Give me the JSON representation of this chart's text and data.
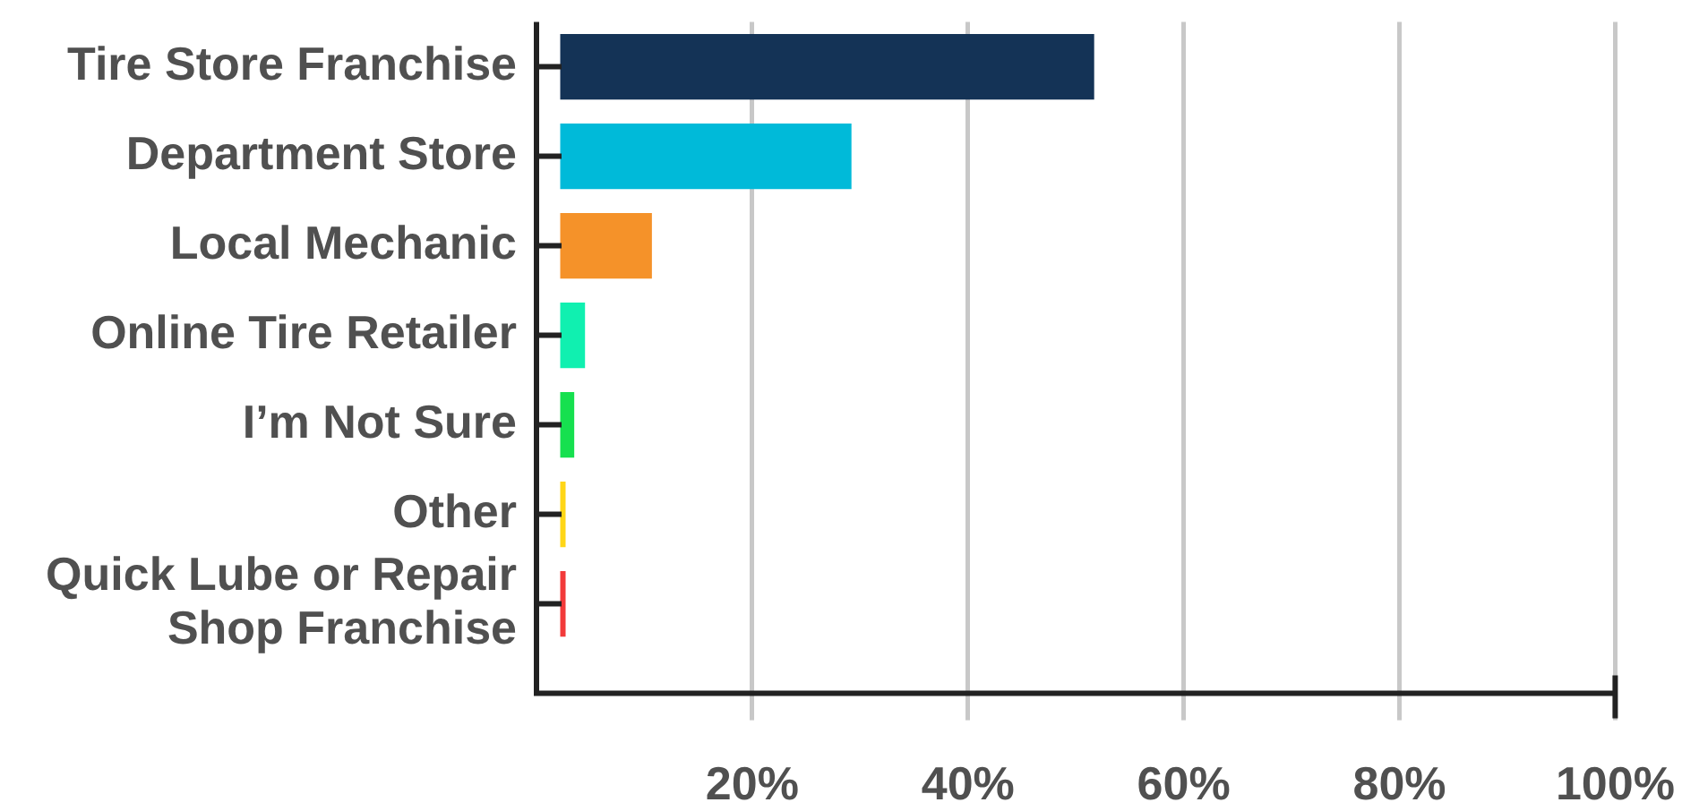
{
  "chart_data": {
    "type": "bar",
    "orientation": "horizontal",
    "categories": [
      "Tire Store Franchise",
      "Department Store",
      "Local Mechanic",
      "Online Tire Retailer",
      "I’m Not Sure",
      "Other",
      "Quick Lube or Repair Shop Franchise"
    ],
    "values": [
      49.5,
      27,
      8.5,
      2.3,
      1.3,
      0.5,
      0.5
    ],
    "base": [
      2.2,
      2.2,
      2.2,
      2.2,
      2.2,
      2.2,
      2.2
    ],
    "colors": [
      "#143356",
      "#00bad9",
      "#f59229",
      "#10f0b0",
      "#16e04f",
      "#ffd617",
      "#f23a3a"
    ],
    "xlim": [
      0,
      100
    ],
    "xticks": [
      {
        "value": 20,
        "label": "20%"
      },
      {
        "value": 40,
        "label": "40%"
      },
      {
        "value": 60,
        "label": "60%"
      },
      {
        "value": 80,
        "label": "80%"
      },
      {
        "value": 100,
        "label": "100%"
      }
    ],
    "grid": "x",
    "legend": false
  }
}
